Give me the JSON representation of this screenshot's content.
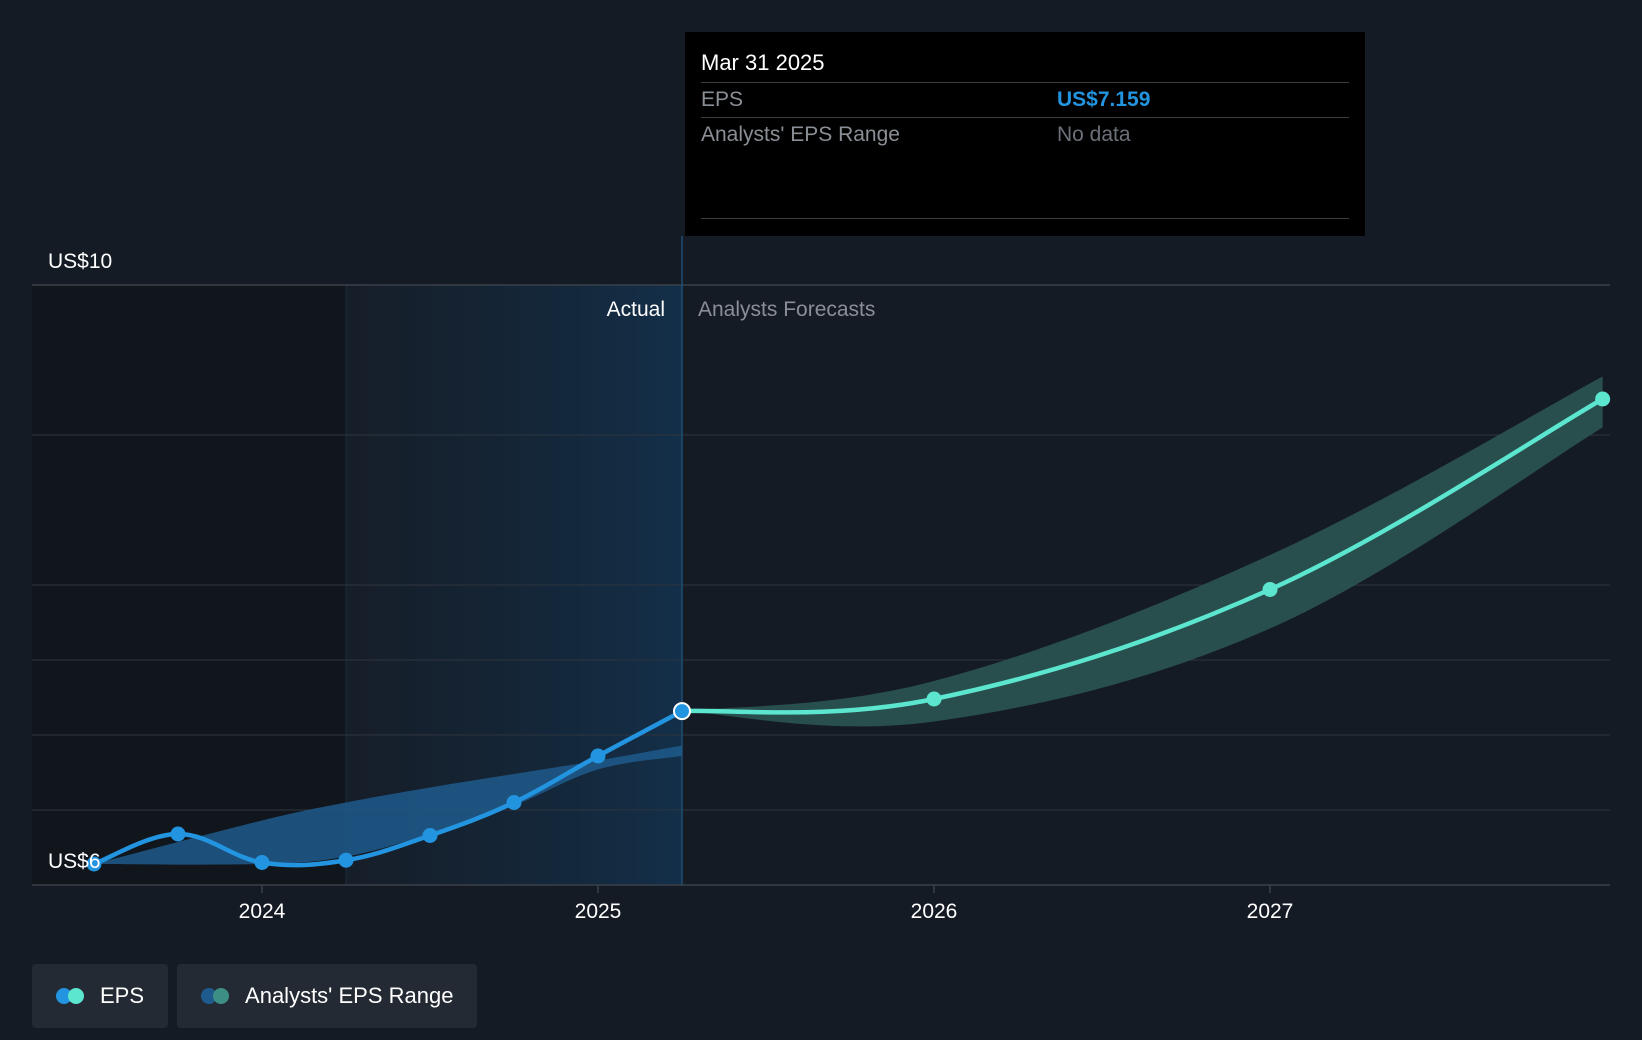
{
  "chart_data": {
    "type": "line",
    "y_axis": {
      "min": 6,
      "max": 10,
      "top_label": "US$10",
      "bottom_label": "US$6",
      "gridlines": [
        6,
        6.5,
        7,
        7.5,
        8,
        9,
        10
      ]
    },
    "x_axis": {
      "ticks": [
        {
          "label": "2024",
          "x": 2024.0
        },
        {
          "label": "2025",
          "x": 2025.0
        },
        {
          "label": "2026",
          "x": 2026.0
        },
        {
          "label": "2027",
          "x": 2027.0
        }
      ],
      "range": [
        2023.3,
        2027.99
      ]
    },
    "region_labels": {
      "actual": "Actual",
      "forecast": "Analysts Forecasts"
    },
    "divider_x": 2025.25,
    "past_band_start_x": 2024.25,
    "series": [
      {
        "name": "EPS",
        "segment": "actual",
        "points": [
          {
            "x": 2023.5,
            "y": 6.14
          },
          {
            "x": 2023.75,
            "y": 6.34
          },
          {
            "x": 2024.0,
            "y": 6.15
          },
          {
            "x": 2024.25,
            "y": 6.165
          },
          {
            "x": 2024.5,
            "y": 6.33
          },
          {
            "x": 2024.75,
            "y": 6.55
          },
          {
            "x": 2025.0,
            "y": 6.86
          },
          {
            "x": 2025.25,
            "y": 7.159
          }
        ]
      },
      {
        "name": "EPS",
        "segment": "forecast",
        "points": [
          {
            "x": 2025.25,
            "y": 7.159
          },
          {
            "x": 2026.0,
            "y": 7.24
          },
          {
            "x": 2027.0,
            "y": 7.97
          },
          {
            "x": 2027.99,
            "y": 9.24
          }
        ]
      }
    ],
    "range_band_actual": {
      "x": [
        2023.5,
        2024.0,
        2024.25,
        2024.5,
        2024.75,
        2025.0,
        2025.25
      ],
      "upper": [
        6.14,
        6.43,
        6.55,
        6.65,
        6.74,
        6.83,
        6.93
      ],
      "lower": [
        6.14,
        6.14,
        6.19,
        6.34,
        6.53,
        6.77,
        6.86
      ]
    },
    "range_band_forecast": {
      "x": [
        2025.25,
        2026.0,
        2027.0,
        2027.99
      ],
      "upper": [
        7.159,
        7.36,
        8.2,
        9.39
      ],
      "lower": [
        7.159,
        7.09,
        7.71,
        9.05
      ]
    },
    "tooltip": {
      "date": "Mar 31 2025",
      "rows": [
        {
          "label": "EPS",
          "value": "US$7.159"
        },
        {
          "label": "Analysts' EPS Range",
          "value": "No data"
        }
      ]
    },
    "legend": [
      "EPS",
      "Analysts' EPS Range"
    ],
    "colors": {
      "background": "#151b24",
      "actual_line": "#2394df",
      "forecast_line": "#5ce5cf",
      "actual_band": "#1e5a8c",
      "forecast_band": "#2a5552",
      "divider": "#1f4d73",
      "grid": "#2e353e",
      "tooltip_value": "#2394df",
      "tooltip_nodata": "#6b7079",
      "legend_eps_dot_a": "#2394df",
      "legend_eps_dot_b": "#5ce5cf",
      "legend_range_dot_a": "#1e5a8c",
      "legend_range_dot_b": "#3d8f86"
    }
  }
}
